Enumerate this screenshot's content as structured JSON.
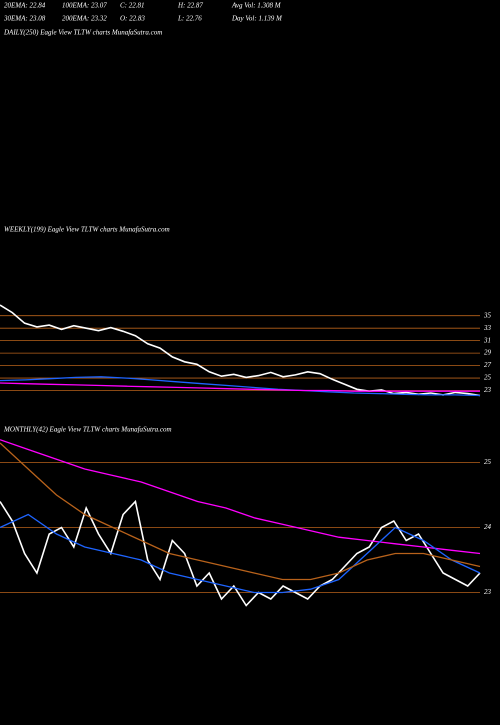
{
  "header": {
    "row1": [
      "20EMA: 22.84",
      "100EMA: 23.07",
      "C: 22.81",
      "H: 22.87",
      "Avg Vol: 1.308 M"
    ],
    "row2": [
      "30EMA: 23.08",
      "200EMA: 23.32",
      "O: 22.83",
      "L: 22.76",
      "Day Vol: 1.139 M"
    ]
  },
  "chart_data": [
    {
      "type": "line",
      "title": "DAILY(250) Eagle View TLTW charts MunafaSutra.com",
      "series": []
    },
    {
      "type": "line",
      "title": "WEEKLY(199) Eagle View TLTW charts MunafaSutra.com",
      "ylim": [
        21,
        38
      ],
      "yticks": [
        35,
        33,
        31,
        29,
        27,
        25,
        23
      ],
      "grid": true,
      "grid_color": "#b8621b",
      "series": [
        {
          "color": "#ffffff",
          "values": [
            36.7,
            35.5,
            33.8,
            33.2,
            33.5,
            32.8,
            33.4,
            33.0,
            32.6,
            33.1,
            32.5,
            31.8,
            30.5,
            29.8,
            28.4,
            27.6,
            27.2,
            26.0,
            25.3,
            25.6,
            25.1,
            25.4,
            25.9,
            25.2,
            25.5,
            26.0,
            25.7,
            24.8,
            24.0,
            23.2,
            22.9,
            23.1,
            22.5,
            22.7,
            22.4,
            22.6,
            22.3,
            22.7,
            22.5,
            22.2
          ]
        },
        {
          "color": "#1e64ff",
          "values": [
            24.6,
            24.7,
            24.9,
            25.1,
            25.2,
            25.0,
            24.7,
            24.4,
            24.1,
            23.8,
            23.5,
            23.2,
            23.0,
            22.8,
            22.6,
            22.5,
            22.4,
            22.3,
            22.3,
            22.2
          ]
        },
        {
          "color": "#ff00ff",
          "values": [
            24.2,
            24.1,
            24.0,
            23.9,
            23.8,
            23.7,
            23.6,
            23.5,
            23.4,
            23.3,
            23.2,
            23.1,
            23.0,
            23.0,
            22.9,
            22.9,
            22.9,
            22.9,
            22.9,
            22.9
          ]
        }
      ]
    },
    {
      "type": "line",
      "title": "MONTHLY(42) Eagle View TLTW charts MunafaSutra.com",
      "ylim": [
        22.7,
        25.5
      ],
      "yticks": [
        25,
        24,
        23
      ],
      "grid": true,
      "grid_color": "#b8621b",
      "series": [
        {
          "color": "#ffffff",
          "values": [
            24.4,
            24.1,
            23.6,
            23.3,
            23.9,
            24.0,
            23.7,
            24.3,
            23.9,
            23.6,
            24.2,
            24.4,
            23.5,
            23.2,
            23.8,
            23.6,
            23.1,
            23.3,
            22.9,
            23.1,
            22.8,
            23.0,
            22.9,
            23.1,
            23.0,
            22.9,
            23.1,
            23.2,
            23.4,
            23.6,
            23.7,
            24.0,
            24.1,
            23.8,
            23.9,
            23.6,
            23.3,
            23.2,
            23.1,
            23.3
          ]
        },
        {
          "color": "#ff00ff",
          "values": [
            25.35,
            25.2,
            25.05,
            24.9,
            24.8,
            24.7,
            24.55,
            24.4,
            24.3,
            24.15,
            24.05,
            23.95,
            23.85,
            23.8,
            23.75,
            23.7,
            23.65,
            23.6
          ]
        },
        {
          "color": "#1e64ff",
          "values": [
            24.0,
            24.2,
            23.9,
            23.7,
            23.6,
            23.5,
            23.3,
            23.2,
            23.1,
            23.0,
            23.0,
            23.05,
            23.2,
            23.6,
            24.0,
            23.8,
            23.5,
            23.3
          ]
        },
        {
          "color": "#b8621b",
          "values": [
            25.3,
            24.9,
            24.5,
            24.2,
            24.0,
            23.8,
            23.6,
            23.5,
            23.4,
            23.3,
            23.2,
            23.2,
            23.3,
            23.5,
            23.6,
            23.6,
            23.5,
            23.4
          ]
        }
      ]
    }
  ]
}
